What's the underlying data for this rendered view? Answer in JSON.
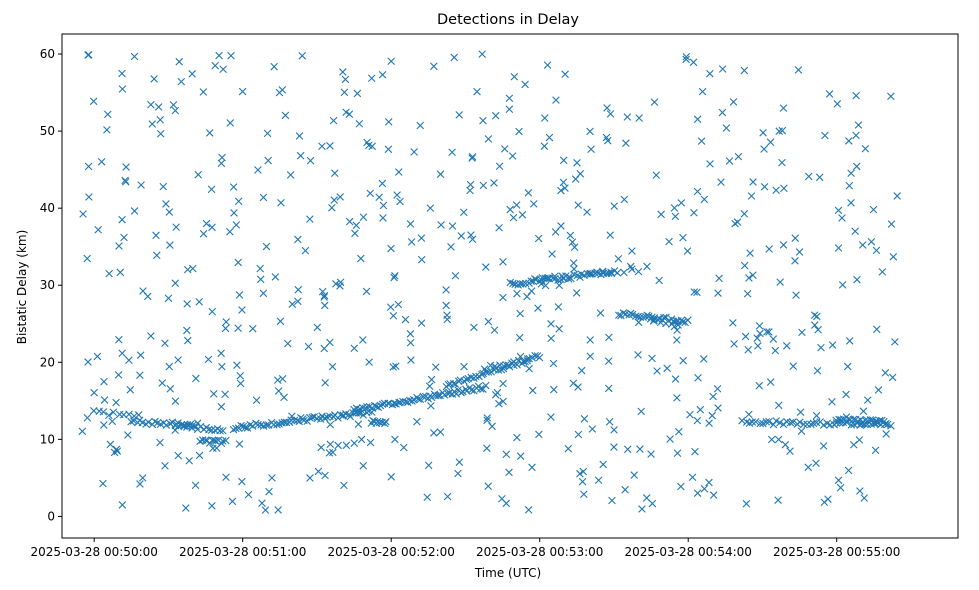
{
  "chart_data": {
    "type": "scatter",
    "title": "Detections in Delay",
    "xlabel": "Time (UTC)",
    "ylabel": "Bistatic Delay (km)",
    "x_unit": "seconds after 2025-03-28 00:50:00 UTC",
    "xlim": [
      -13,
      349
    ],
    "ylim": [
      -2.8,
      62.6
    ],
    "x_ticks": [
      {
        "value": 0,
        "label": "2025-03-28 00:50:00"
      },
      {
        "value": 60,
        "label": "2025-03-28 00:51:00"
      },
      {
        "value": 120,
        "label": "2025-03-28 00:52:00"
      },
      {
        "value": 180,
        "label": "2025-03-28 00:53:00"
      },
      {
        "value": 240,
        "label": "2025-03-28 00:54:00"
      },
      {
        "value": 300,
        "label": "2025-03-28 00:55:00"
      }
    ],
    "y_ticks": [
      {
        "value": 0,
        "label": "0"
      },
      {
        "value": 10,
        "label": "10"
      },
      {
        "value": 20,
        "label": "20"
      },
      {
        "value": 30,
        "label": "30"
      },
      {
        "value": 40,
        "label": "40"
      },
      {
        "value": 50,
        "label": "50"
      },
      {
        "value": 60,
        "label": "60"
      }
    ],
    "grid": false,
    "marker": "x",
    "color": "#1f77b4",
    "tracks": [
      {
        "x_start": 0,
        "x_end": 18,
        "y_start": 13.5,
        "y_end": 13.0,
        "n": 10
      },
      {
        "x_start": 15,
        "x_end": 40,
        "y_start": 12.3,
        "y_end": 11.8,
        "n": 22
      },
      {
        "x_start": 33,
        "x_end": 52,
        "y_start": 11.8,
        "y_end": 11.2,
        "n": 18
      },
      {
        "x_start": 43,
        "x_end": 53,
        "y_start": 9.8,
        "y_end": 9.6,
        "n": 12
      },
      {
        "x_start": 56,
        "x_end": 112,
        "y_start": 11.5,
        "y_end": 13.5,
        "n": 55
      },
      {
        "x_start": 92,
        "x_end": 108,
        "y_start": 9.0,
        "y_end": 9.8,
        "n": 6
      },
      {
        "x_start": 105,
        "x_end": 158,
        "y_start": 13.8,
        "y_end": 16.8,
        "n": 60
      },
      {
        "x_start": 112,
        "x_end": 118,
        "y_start": 12.2,
        "y_end": 12.2,
        "n": 8
      },
      {
        "x_start": 142,
        "x_end": 180,
        "y_start": 17.0,
        "y_end": 20.8,
        "n": 38
      },
      {
        "x_start": 158,
        "x_end": 175,
        "y_start": 19.3,
        "y_end": 20.2,
        "n": 10
      },
      {
        "x_start": 165,
        "x_end": 188,
        "y_start": 28.6,
        "y_end": 30.2,
        "n": 5
      },
      {
        "x_start": 168,
        "x_end": 210,
        "y_start": 30.1,
        "y_end": 31.8,
        "n": 40
      },
      {
        "x_start": 178,
        "x_end": 192,
        "y_start": 31.0,
        "y_end": 31.0,
        "n": 6
      },
      {
        "x_start": 200,
        "x_end": 220,
        "y_start": 31.4,
        "y_end": 32.0,
        "n": 8
      },
      {
        "x_start": 212,
        "x_end": 240,
        "y_start": 26.3,
        "y_end": 25.3,
        "n": 30
      },
      {
        "x_start": 224,
        "x_end": 236,
        "y_start": 25.8,
        "y_end": 24.8,
        "n": 6
      },
      {
        "x_start": 262,
        "x_end": 322,
        "y_start": 12.2,
        "y_end": 12.0,
        "n": 45
      },
      {
        "x_start": 300,
        "x_end": 320,
        "y_start": 12.5,
        "y_end": 12.2,
        "n": 22
      }
    ],
    "noise": {
      "count": 620,
      "x_range": [
        -5,
        325
      ],
      "y_range": [
        0.8,
        60
      ],
      "seed": 7
    }
  }
}
